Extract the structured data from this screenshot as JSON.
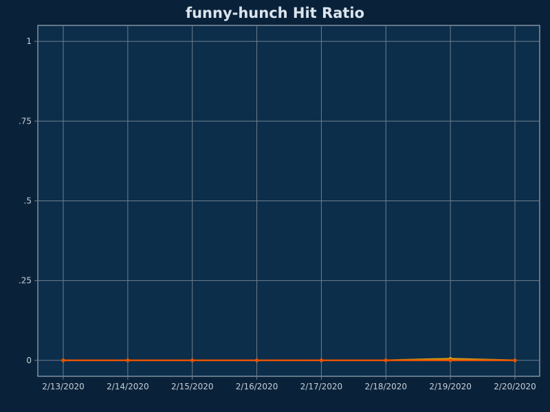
{
  "chart_data": {
    "type": "line",
    "title": "funny-hunch Hit Ratio",
    "xlabel": "",
    "ylabel": "",
    "categories": [
      "2/13/2020",
      "2/14/2020",
      "2/15/2020",
      "2/16/2020",
      "2/17/2020",
      "2/18/2020",
      "2/19/2020",
      "2/20/2020"
    ],
    "yticks": [
      0,
      0.25,
      0.5,
      0.75,
      1
    ],
    "ytick_labels": [
      "0",
      ".25",
      ".5",
      ".75",
      "1"
    ],
    "ylim": [
      -0.05,
      1.05
    ],
    "grid": true,
    "series": [
      {
        "color": "#e65100",
        "values": [
          0,
          0,
          0,
          0,
          0,
          0,
          0,
          0
        ]
      },
      {
        "color": "#d4a017",
        "values": [
          0,
          0,
          0,
          0,
          0,
          0,
          0.005,
          0
        ]
      }
    ]
  },
  "colors": {
    "background": "#0a2239",
    "plot_background": "#0c2e4a",
    "grid": "#6f7f8f",
    "text": "#c5cfda"
  }
}
